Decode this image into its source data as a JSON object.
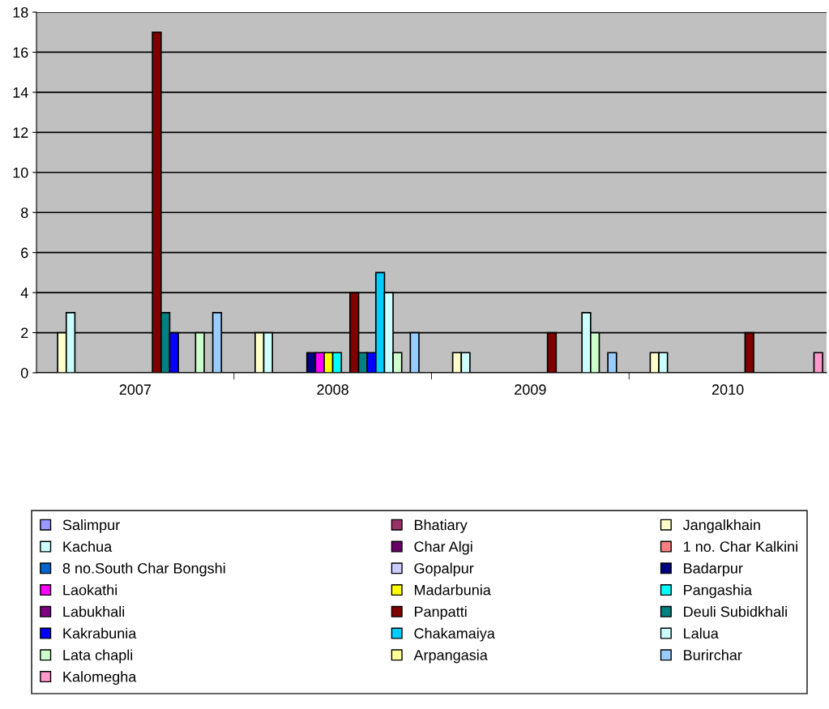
{
  "chart_data": {
    "type": "bar",
    "categories": [
      "2007",
      "2008",
      "2009",
      "2010"
    ],
    "series": [
      {
        "name": "Salimpur",
        "color": "#9999ff",
        "values": [
          0,
          0,
          0,
          0
        ]
      },
      {
        "name": "Bhatiary",
        "color": "#993366",
        "values": [
          0,
          0,
          0,
          0
        ]
      },
      {
        "name": "Jangalkhain",
        "color": "#ffffcc",
        "values": [
          2,
          2,
          1,
          1
        ]
      },
      {
        "name": "Kachua",
        "color": "#ccffff",
        "values": [
          3,
          2,
          1,
          1
        ]
      },
      {
        "name": "Char Algi",
        "color": "#660066",
        "values": [
          0,
          0,
          0,
          0
        ]
      },
      {
        "name": "1 no. Char Kalkini",
        "color": "#ff8080",
        "values": [
          0,
          0,
          0,
          0
        ]
      },
      {
        "name": "8 no.South Char Bongshi",
        "color": "#0066cc",
        "values": [
          0,
          0,
          0,
          0
        ]
      },
      {
        "name": "Gopalpur",
        "color": "#ccccff",
        "values": [
          0,
          0,
          0,
          0
        ]
      },
      {
        "name": "Badarpur",
        "color": "#000080",
        "values": [
          0,
          1,
          0,
          0
        ]
      },
      {
        "name": "Laokathi",
        "color": "#ff00ff",
        "values": [
          0,
          1,
          0,
          0
        ]
      },
      {
        "name": "Madarbunia",
        "color": "#ffff00",
        "values": [
          0,
          1,
          0,
          0
        ]
      },
      {
        "name": "Pangashia",
        "color": "#00ffff",
        "values": [
          0,
          1,
          0,
          0
        ]
      },
      {
        "name": "Labukhali",
        "color": "#800080",
        "values": [
          0,
          0,
          0,
          0
        ]
      },
      {
        "name": "Panpatti",
        "color": "#800000",
        "values": [
          17,
          4,
          2,
          2
        ]
      },
      {
        "name": "Deuli Subidkhali",
        "color": "#008080",
        "values": [
          3,
          1,
          0,
          0
        ]
      },
      {
        "name": "Kakrabunia",
        "color": "#0000ff",
        "values": [
          2,
          1,
          0,
          0
        ]
      },
      {
        "name": "Chakamaiya",
        "color": "#00ccff",
        "values": [
          0,
          5,
          0,
          0
        ]
      },
      {
        "name": "Lalua",
        "color": "#ccffff",
        "values": [
          0,
          4,
          3,
          0
        ]
      },
      {
        "name": "Lata chapli",
        "color": "#ccffcc",
        "values": [
          2,
          1,
          2,
          0
        ]
      },
      {
        "name": "Arpangasia",
        "color": "#ffff99",
        "values": [
          0,
          0,
          0,
          0
        ]
      },
      {
        "name": "Burirchar",
        "color": "#99ccff",
        "values": [
          3,
          2,
          1,
          0
        ]
      },
      {
        "name": "Kalomegha",
        "color": "#ff99cc",
        "values": [
          0,
          0,
          0,
          1
        ]
      }
    ],
    "ylim": [
      0,
      18
    ],
    "yticks": [
      0,
      2,
      4,
      6,
      8,
      10,
      12,
      14,
      16,
      18
    ],
    "grid": "y",
    "legend": "bottom"
  }
}
